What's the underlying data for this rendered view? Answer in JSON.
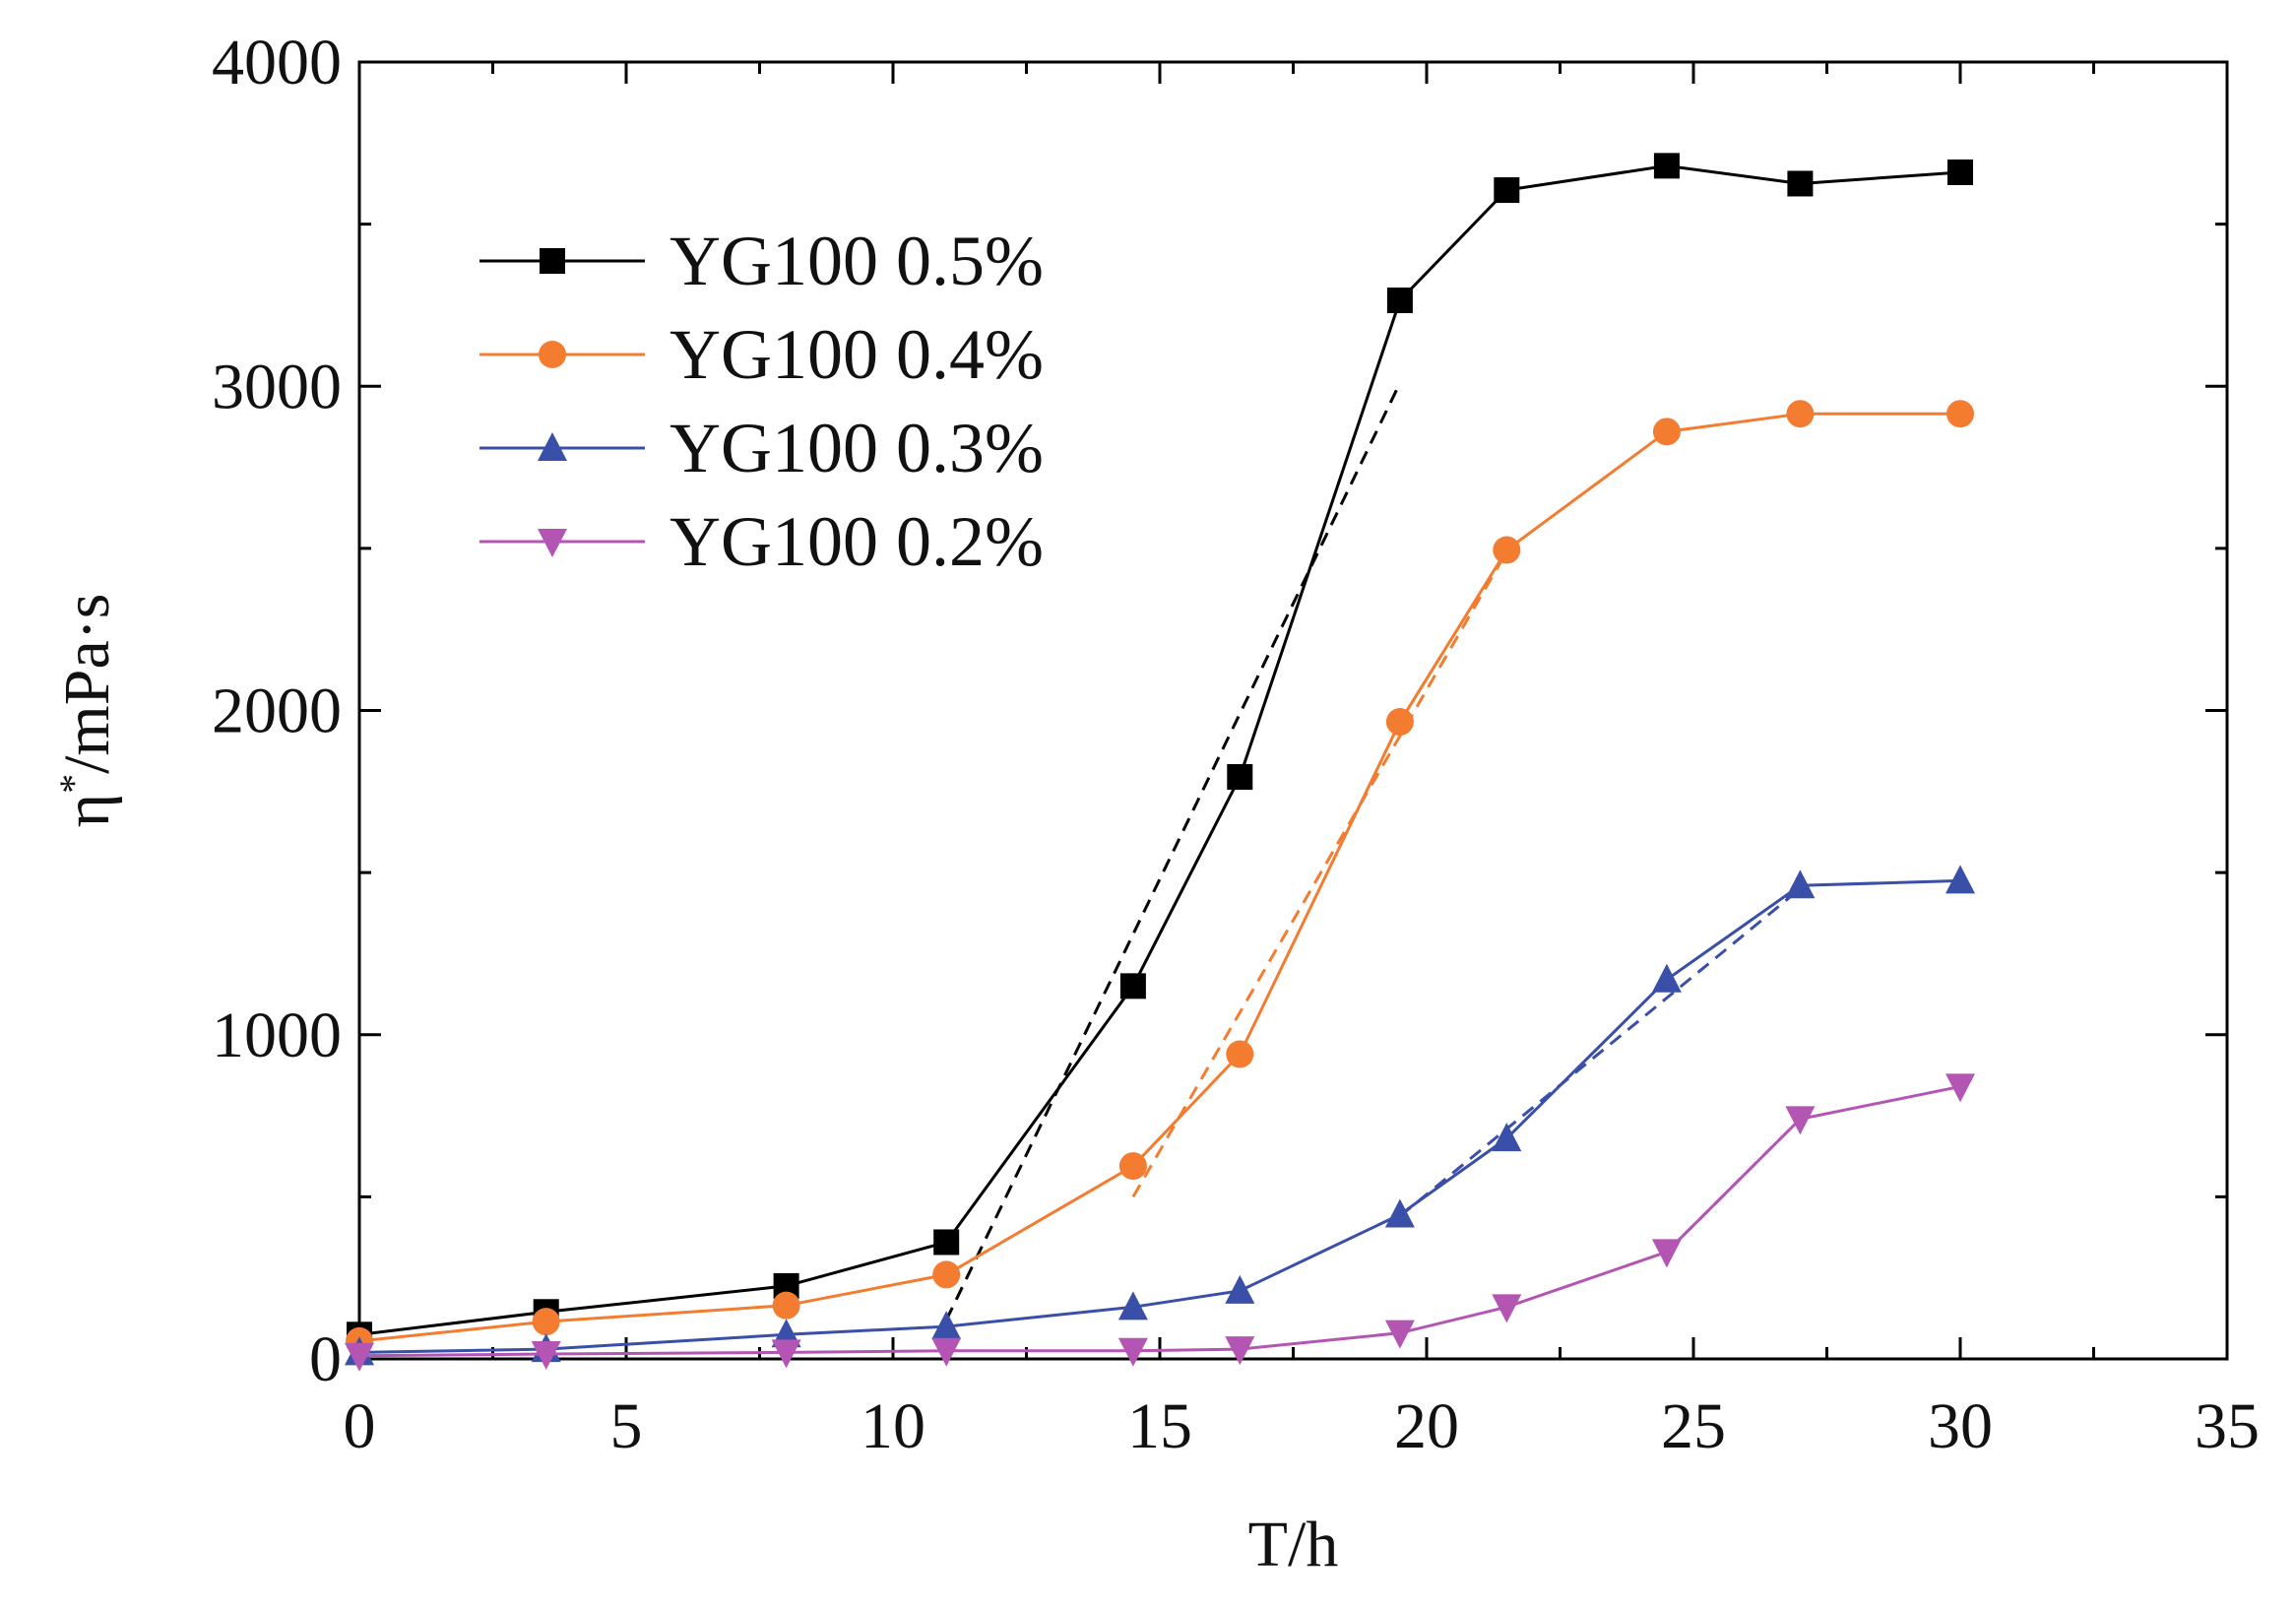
{
  "chart_data": {
    "type": "line",
    "title": "",
    "xlabel": "T/h",
    "ylabel_main": "η",
    "ylabel_sup": "*",
    "ylabel_rest": "/mPa·s",
    "xlim": [
      0,
      35
    ],
    "ylim": [
      0,
      4000
    ],
    "x_ticks": [
      0,
      5,
      10,
      15,
      20,
      25,
      30,
      35
    ],
    "x_tick_labels": [
      "0",
      "5",
      "10",
      "15",
      "20",
      "25",
      "30",
      "35"
    ],
    "y_ticks": [
      0,
      1000,
      2000,
      3000,
      4000
    ],
    "y_tick_labels": [
      "0",
      "1000",
      "2000",
      "3000",
      "4000"
    ],
    "legend_position": "top-left",
    "series": [
      {
        "name": "YG100 0.5%",
        "color": "#000000",
        "marker": "square",
        "x": [
          0,
          3.5,
          8,
          11,
          14.5,
          16.5,
          19.5,
          21.5,
          24.5,
          27,
          30
        ],
        "values": [
          75,
          145,
          225,
          360,
          1150,
          1795,
          3265,
          3605,
          3680,
          3625,
          3660
        ],
        "fit": {
          "x": [
            11,
            19.5
          ],
          "values": [
            120,
            3010
          ]
        }
      },
      {
        "name": "YG100 0.4%",
        "color": "#f47c30",
        "marker": "circle",
        "x": [
          0,
          3.5,
          8,
          11,
          14.5,
          16.5,
          19.5,
          21.5,
          24.5,
          27,
          30
        ],
        "values": [
          55,
          115,
          165,
          260,
          595,
          940,
          1965,
          2495,
          2860,
          2915,
          2915
        ],
        "fit": {
          "x": [
            14.5,
            21.5
          ],
          "values": [
            500,
            2490
          ]
        }
      },
      {
        "name": "YG100 0.3%",
        "color": "#3a4fa8",
        "marker": "triangle-up",
        "x": [
          0,
          3.5,
          8,
          11,
          14.5,
          16.5,
          19.5,
          21.5,
          24.5,
          27,
          30
        ],
        "values": [
          20,
          30,
          75,
          100,
          160,
          210,
          445,
          680,
          1170,
          1460,
          1475
        ],
        "fit": {
          "x": [
            19.5,
            27
          ],
          "values": [
            440,
            1450
          ]
        }
      },
      {
        "name": "YG100 0.2%",
        "color": "#b455b4",
        "marker": "triangle-down",
        "x": [
          0,
          3.5,
          8,
          11,
          14.5,
          16.5,
          19.5,
          21.5,
          24.5,
          27,
          30
        ],
        "values": [
          10,
          15,
          20,
          25,
          25,
          30,
          80,
          160,
          330,
          740,
          840
        ],
        "fit": {
          "x": [
            24.5,
            27
          ],
          "values": [
            330,
            740
          ]
        }
      }
    ]
  }
}
